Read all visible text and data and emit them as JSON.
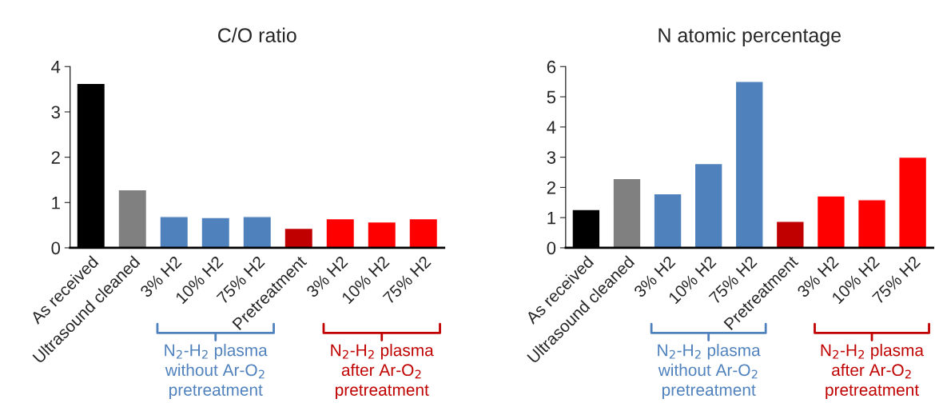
{
  "chart_data": [
    {
      "type": "bar",
      "title": "C/O ratio",
      "categories": [
        "As received",
        "Ultrasound cleaned",
        "3% H2",
        "10% H2",
        "75% H2",
        "Pretreatment",
        "3% H2",
        "10% H2",
        "75% H2"
      ],
      "values": [
        3.63,
        1.28,
        0.69,
        0.67,
        0.69,
        0.43,
        0.64,
        0.57,
        0.64
      ],
      "colors": [
        "#000000",
        "#808080",
        "#4f81bd",
        "#4f81bd",
        "#4f81bd",
        "#c00000",
        "#ff0000",
        "#ff0000",
        "#ff0000"
      ],
      "ylim": [
        0,
        4
      ],
      "yticks": [
        0,
        1,
        2,
        3,
        4
      ],
      "grid": false,
      "legend": false,
      "annotations": [
        "N$_{2}$-H$_{2}$ plasma\nwithout Ar-O$_{2}$\npretreatment",
        "N$_{2}$-H$_{2}$ plasma\nafter Ar-O$_{2}$\npretreatment"
      ]
    },
    {
      "type": "bar",
      "title": "N atomic percentage",
      "categories": [
        "As received",
        "Ultrasound cleaned",
        "3% H2",
        "10% H2",
        "75% H2",
        "Pretreatment",
        "3% H2",
        "10% H2",
        "75% H2"
      ],
      "values": [
        1.27,
        2.29,
        1.79,
        2.79,
        5.51,
        0.88,
        1.72,
        1.59,
        3.0
      ],
      "colors": [
        "#000000",
        "#808080",
        "#4f81bd",
        "#4f81bd",
        "#4f81bd",
        "#c00000",
        "#ff0000",
        "#ff0000",
        "#ff0000"
      ],
      "ylim": [
        0,
        6
      ],
      "yticks": [
        0,
        1,
        2,
        3,
        4,
        5,
        6
      ],
      "grid": false,
      "legend": false,
      "annotations": [
        "N$_{2}$-H$_{2}$ plasma\nwithout Ar-O$_{2}$\npretreatment",
        "N$_{2}$-H$_{2}$ plasma\nafter Ar-O$_{2}$\npretreatment"
      ]
    }
  ]
}
